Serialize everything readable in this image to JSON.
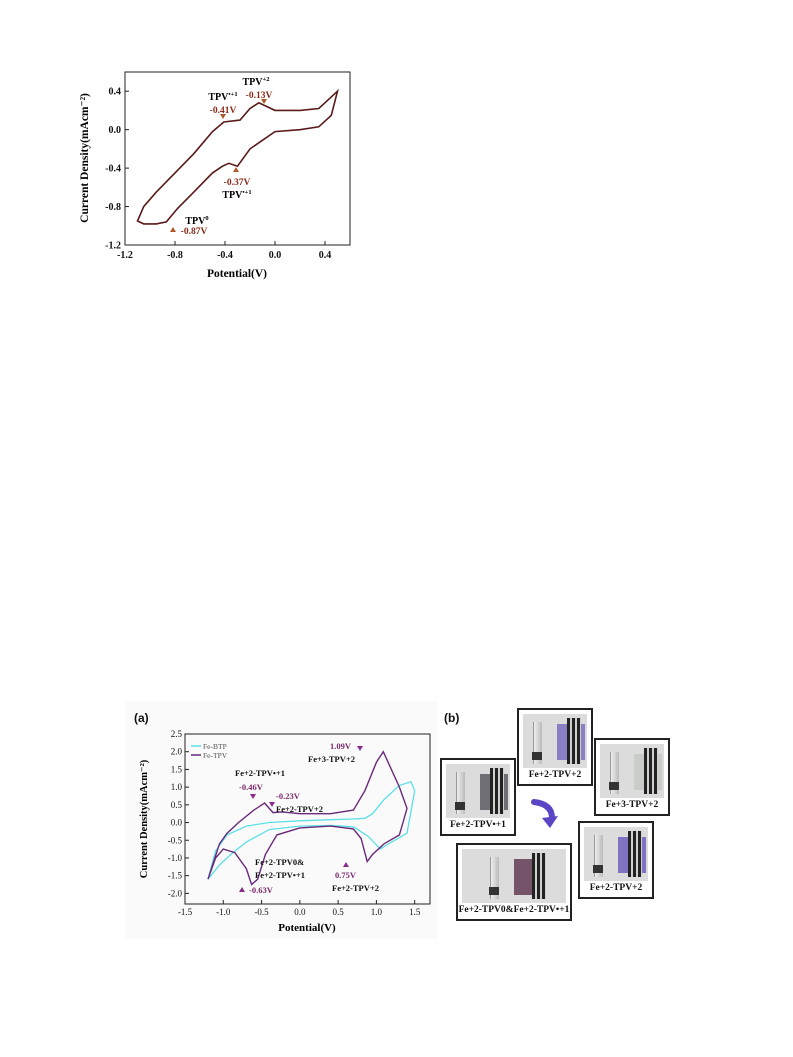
{
  "figure_top": {
    "ylabel": "Current Density(mAcm⁻²)",
    "xlabel": "Potential(V)",
    "xticks": [
      "-1.2",
      "-0.8",
      "-0.4",
      "0.0",
      "0.4"
    ],
    "yticks": [
      "0.4",
      "0.0",
      "-0.4",
      "-0.8",
      "-1.2"
    ],
    "annotations": [
      {
        "species": "TPV",
        "superscript": "+2",
        "potential": "-0.13V"
      },
      {
        "species": "TPV",
        "superscript": "•+1",
        "potential": "-0.41V"
      },
      {
        "species": "TPV",
        "superscript": "•+1",
        "potential": "-0.37V"
      },
      {
        "species": "TPV",
        "superscript": "0",
        "potential": "-0.87V"
      }
    ]
  },
  "figure_bottom": {
    "panel_a_label": "(a)",
    "panel_b_label": "(b)",
    "legend": [
      "Fe-BTP",
      "Fe-TPV"
    ],
    "xlabel": "Potential(V)",
    "ylabel": "Current Density(mAcm⁻²)",
    "xticks": [
      "-1.5",
      "-1.0",
      "-0.5",
      "0.0",
      "0.5",
      "1.0",
      "1.5"
    ],
    "yticks": [
      "2.5",
      "2.0",
      "1.5",
      "1.0",
      "0.5",
      "0.0",
      "-0.5",
      "-1.0",
      "-1.5",
      "-2.0"
    ],
    "annotations": {
      "a1_label": "Fe+2-TPV•+1",
      "a1_pot": "-0.46V",
      "a2_pot": "-0.23V",
      "a2_label": "Fe+2-TPV+2",
      "a3_pot": "1.09V",
      "a3_label": "Fe+3-TPV+2",
      "a4_pot": "0.75V",
      "a4_label": "Fe+2-TPV+2",
      "a5_line1": "Fe+2-TPV0&",
      "a5_line2": "Fe+2-TPV•+1",
      "a5_pot": "-0.63V"
    },
    "photos": [
      {
        "caption": "Fe+2-TPV+2",
        "film_color": "#8a7fc4"
      },
      {
        "caption": "Fe+3-TPV+2",
        "film_color": "#c9ccc9"
      },
      {
        "caption": "Fe+2-TPV•+1",
        "film_color": "#6e6e74"
      },
      {
        "caption": "Fe+2-TPV+2",
        "film_color": "#7f73c2"
      },
      {
        "caption": "Fe+2-TPV0&Fe+2-TPV•+1",
        "film_color": "#75546a"
      }
    ]
  },
  "chart_data": [
    {
      "type": "line",
      "title": "",
      "xlabel": "Potential(V)",
      "ylabel": "Current Density(mAcm⁻²)",
      "xlim": [
        -1.2,
        0.6
      ],
      "ylim": [
        -1.2,
        0.6
      ],
      "legend": "none",
      "series": [
        {
          "color": "#5a1a1a",
          "x": [
            0.5,
            0.35,
            0.2,
            0.0,
            -0.13,
            -0.2,
            -0.28,
            -0.41,
            -0.5,
            -0.65,
            -0.8,
            -0.95,
            -1.05,
            -1.1,
            -1.05,
            -0.95,
            -0.87,
            -0.78,
            -0.65,
            -0.5,
            -0.42,
            -0.37,
            -0.3,
            -0.2,
            0.0,
            0.2,
            0.35,
            0.45,
            0.5
          ],
          "y": [
            0.4,
            0.22,
            0.2,
            0.2,
            0.28,
            0.22,
            0.1,
            0.08,
            -0.02,
            -0.25,
            -0.45,
            -0.65,
            -0.8,
            -0.95,
            -0.98,
            -0.98,
            -0.96,
            -0.82,
            -0.65,
            -0.45,
            -0.38,
            -0.35,
            -0.38,
            -0.2,
            -0.02,
            0.0,
            0.03,
            0.15,
            0.4
          ]
        }
      ]
    },
    {
      "type": "line",
      "title": "",
      "xlabel": "Potential(V)",
      "ylabel": "Current Density(mAcm⁻²)",
      "xlim": [
        -1.5,
        1.7
      ],
      "ylim": [
        -2.3,
        2.5
      ],
      "legend": "top-left",
      "series": [
        {
          "name": "Fe-BTP",
          "color": "#5ce0e6",
          "x": [
            -1.2,
            -1.05,
            -0.9,
            -0.7,
            -0.4,
            0.0,
            0.4,
            0.7,
            0.9,
            1.05,
            1.2,
            1.4,
            1.5,
            1.45,
            1.3,
            1.1,
            0.95,
            0.85,
            0.7,
            0.4,
            0.0,
            -0.4,
            -0.7,
            -0.95,
            -1.1,
            -1.2
          ],
          "y": [
            -1.6,
            -1.2,
            -0.9,
            -0.55,
            -0.2,
            -0.1,
            -0.08,
            -0.12,
            -0.4,
            -0.75,
            -0.55,
            -0.3,
            0.9,
            1.15,
            1.05,
            0.65,
            0.25,
            0.12,
            0.1,
            0.08,
            0.05,
            0.0,
            -0.1,
            -0.35,
            -0.8,
            -1.6
          ]
        },
        {
          "name": "Fe-TPV",
          "color": "#6a2a7a",
          "x": [
            -1.2,
            -1.1,
            -1.0,
            -0.85,
            -0.7,
            -0.63,
            -0.55,
            -0.45,
            -0.3,
            0.0,
            0.4,
            0.7,
            0.8,
            0.88,
            0.95,
            1.1,
            1.3,
            1.4,
            1.3,
            1.09,
            1.0,
            0.85,
            0.7,
            0.4,
            0.0,
            -0.23,
            -0.35,
            -0.46,
            -0.6,
            -0.8,
            -0.95,
            -1.05,
            -1.2
          ],
          "y": [
            -1.6,
            -1.0,
            -0.75,
            -0.85,
            -1.3,
            -1.75,
            -1.6,
            -0.9,
            -0.35,
            -0.15,
            -0.1,
            -0.18,
            -0.45,
            -1.1,
            -0.9,
            -0.6,
            -0.35,
            0.4,
            1.0,
            2.0,
            1.7,
            0.9,
            0.35,
            0.25,
            0.25,
            0.3,
            0.28,
            0.55,
            0.35,
            0.0,
            -0.3,
            -0.6,
            -1.6
          ]
        }
      ]
    }
  ]
}
